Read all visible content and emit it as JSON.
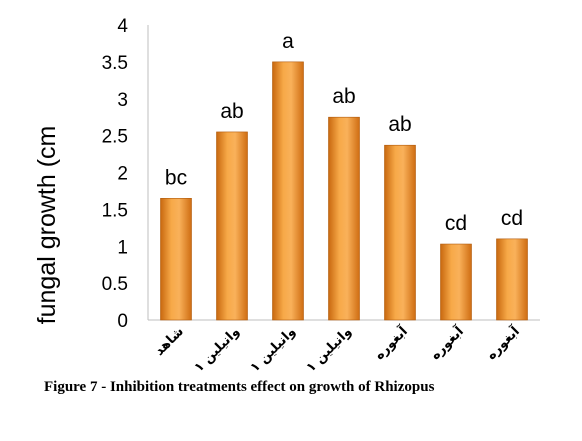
{
  "caption": "Figure 7 - Inhibition treatments effect on growth of Rhizopus",
  "chart_data": {
    "type": "bar",
    "ylabel": "fungal growth (cm",
    "xlabel": "",
    "ylim": [
      0,
      4
    ],
    "yticks": [
      "0",
      "0.5",
      "1",
      "1.5",
      "2",
      "2.5",
      "3",
      "3.5",
      "4"
    ],
    "categories": [
      "شاهد",
      "وانيلين ١",
      "وانيلين ١",
      "وانيلين ١",
      "آبغوره",
      "آبغوره",
      "آبغوره"
    ],
    "values": [
      1.65,
      2.55,
      3.5,
      2.75,
      2.37,
      1.03,
      1.1
    ],
    "data_labels": [
      "bc",
      "ab",
      "a",
      "ab",
      "ab",
      "cd",
      "cd"
    ],
    "bar_color": "#F39A2F",
    "grid": false
  }
}
